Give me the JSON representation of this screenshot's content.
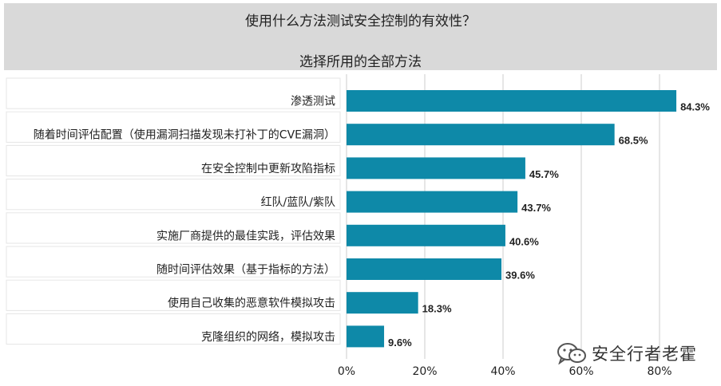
{
  "header": {
    "title": "使用什么方法测试安全控制的有效性？",
    "subtitle": "选择所用的全部方法"
  },
  "watermark": {
    "text": "安全行者老霍",
    "icon": "wechat-icon"
  },
  "colors": {
    "bar": "#0e89a8",
    "grid": "#cccccc",
    "header_bg": "#d9d9d9"
  },
  "chart_data": {
    "type": "bar",
    "orientation": "horizontal",
    "title": "使用什么方法测试安全控制的有效性？",
    "subtitle": "选择所用的全部方法",
    "categories": [
      "渗透测试",
      "随着时间评估配置（使用漏洞扫描发现未打补丁的CVE漏洞）",
      "在安全控制中更新攻陷指标",
      "红队/蓝队/紫队",
      "实施厂商提供的最佳实践，评估效果",
      "随时间评估效果（基于指标的方法）",
      "使用自己收集的恶意软件模拟攻击",
      "克隆组织的网络，模拟攻击"
    ],
    "values": [
      84.3,
      68.5,
      45.7,
      43.7,
      40.6,
      39.6,
      18.3,
      9.6
    ],
    "value_labels": [
      "84.3%",
      "68.5%",
      "45.7%",
      "43.7%",
      "40.6%",
      "39.6%",
      "18.3%",
      "9.6%"
    ],
    "xlim": [
      0,
      90
    ],
    "xticks": [
      0,
      20,
      40,
      60,
      80
    ],
    "xtick_labels": [
      "0%",
      "20%",
      "40%",
      "60%",
      "80%"
    ],
    "grid": "vertical"
  }
}
